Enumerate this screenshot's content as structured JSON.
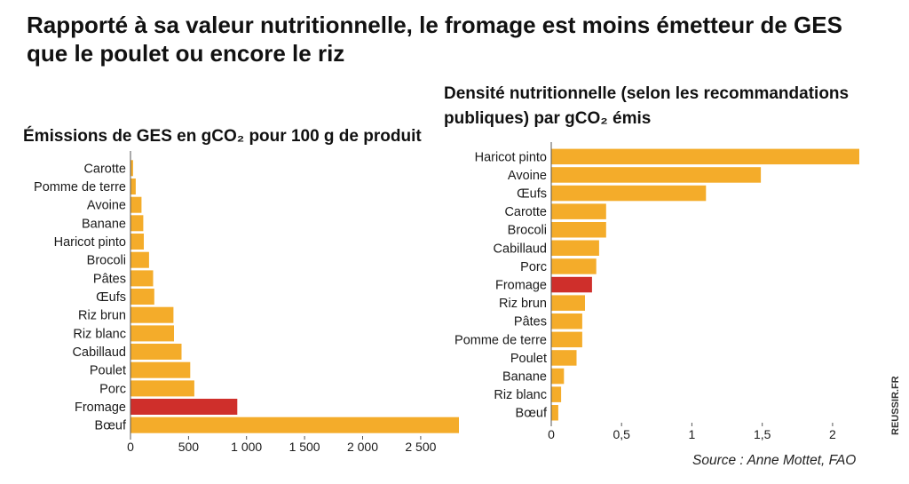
{
  "headline": "Rapporté à sa valeur nutritionnelle, le fromage est moins émetteur de GES que le poulet ou encore le riz",
  "source": "Source : Anne Mottet, FAO",
  "site": "REUSSIR.FR",
  "colors": {
    "bar": "#f4ac2a",
    "highlight": "#cf2f2b",
    "axis": "#555555",
    "label": "#1a1a1a"
  },
  "chart_data": [
    {
      "type": "bar",
      "orientation": "horizontal",
      "title": "Émissions de GES en gCO₂ pour 100 g de produit",
      "categories": [
        "Carotte",
        "Pomme de terre",
        "Avoine",
        "Banane",
        "Haricot pinto",
        "Brocoli",
        "Pâtes",
        "Œufs",
        "Riz brun",
        "Riz blanc",
        "Cabillaud",
        "Poulet",
        "Porc",
        "Fromage",
        "Bœuf"
      ],
      "values": [
        22,
        45,
        95,
        110,
        115,
        160,
        195,
        205,
        370,
        375,
        440,
        515,
        550,
        920,
        2830
      ],
      "highlight": "Fromage",
      "xlim": [
        0,
        2830
      ],
      "xticks": [
        0,
        500,
        1000,
        1500,
        2000,
        2500
      ],
      "xtick_labels": [
        "0",
        "500",
        "1 000",
        "1 500",
        "2 000",
        "2 500"
      ]
    },
    {
      "type": "bar",
      "orientation": "horizontal",
      "title": "Densité nutritionnelle (selon les recommandations publiques) par gCO₂ émis",
      "categories": [
        "Haricot pinto",
        "Avoine",
        "Œufs",
        "Carotte",
        "Brocoli",
        "Cabillaud",
        "Porc",
        "Fromage",
        "Riz brun",
        "Pâtes",
        "Pomme de terre",
        "Poulet",
        "Banane",
        "Riz blanc",
        "Bœuf"
      ],
      "values": [
        2.19,
        1.49,
        1.1,
        0.39,
        0.39,
        0.34,
        0.32,
        0.29,
        0.24,
        0.22,
        0.22,
        0.18,
        0.09,
        0.07,
        0.05
      ],
      "highlight": "Fromage",
      "xlim": [
        0,
        2.19
      ],
      "xticks": [
        0,
        0.5,
        1,
        1.5,
        2
      ],
      "xtick_labels": [
        "0",
        "0,5",
        "1",
        "1,5",
        "2"
      ]
    }
  ]
}
